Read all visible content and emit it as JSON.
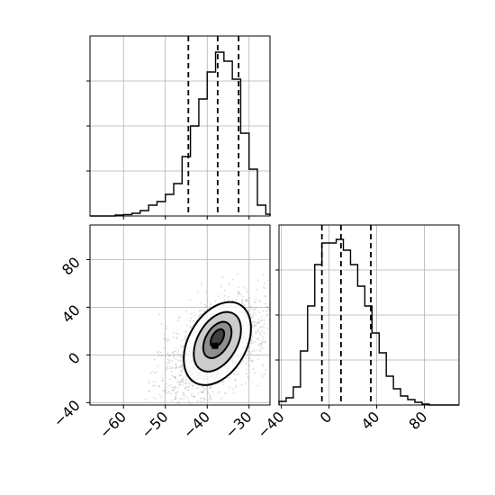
{
  "chart_data": [
    {
      "panel": "top-left",
      "type": "histogram",
      "variable": "x",
      "xlim": [
        -68,
        -25
      ],
      "ylim": [
        0,
        1
      ],
      "grid": true,
      "bin_edges": [
        -68,
        -66,
        -64,
        -62,
        -60,
        -58,
        -56,
        -54,
        -52,
        -50,
        -48,
        -46,
        -44,
        -42,
        -40,
        -38,
        -36,
        -34,
        -32,
        -30,
        -28,
        -26,
        -25
      ],
      "counts": [
        0,
        0,
        0,
        0.005,
        0.008,
        0.015,
        0.03,
        0.06,
        0.08,
        0.12,
        0.18,
        0.33,
        0.5,
        0.65,
        0.8,
        0.91,
        0.86,
        0.76,
        0.46,
        0.26,
        0.06,
        0.01
      ],
      "quantiles": [
        -44.5,
        -37.5,
        -32.5
      ],
      "yticks_unlabeled": true
    },
    {
      "panel": "bottom-left",
      "type": "scatter-density",
      "x_variable": "x",
      "y_variable": "y",
      "xlim": [
        -68,
        -25
      ],
      "ylim": [
        -42,
        109
      ],
      "xticks": [
        -60,
        -50,
        -40,
        -30
      ],
      "yticks": [
        -40,
        0,
        40,
        80
      ],
      "xtick_labels": [
        "−60",
        "−50",
        "−40",
        "−30"
      ],
      "ytick_labels": [
        "−40",
        "0",
        "40",
        "80"
      ],
      "grid": true,
      "center": [
        -38,
        5
      ],
      "contour_levels": 4
    },
    {
      "panel": "bottom-right",
      "type": "histogram",
      "variable": "y",
      "xlim": [
        -42,
        109
      ],
      "ylim": [
        0,
        1
      ],
      "xticks": [
        -40,
        0,
        40,
        80
      ],
      "xtick_labels": [
        "−40",
        "0",
        "40",
        "80"
      ],
      "grid": true,
      "bin_edges": [
        -42,
        -36,
        -30,
        -24,
        -18,
        -12,
        -6,
        0,
        6,
        12,
        18,
        24,
        30,
        36,
        42,
        48,
        54,
        60,
        66,
        72,
        78,
        84,
        90,
        96,
        109
      ],
      "counts": [
        0.02,
        0.04,
        0.1,
        0.3,
        0.55,
        0.78,
        0.9,
        0.9,
        0.92,
        0.86,
        0.78,
        0.66,
        0.55,
        0.4,
        0.29,
        0.16,
        0.09,
        0.05,
        0.03,
        0.015,
        0.005,
        0,
        0,
        0
      ],
      "quantiles": [
        -6,
        10,
        35
      ],
      "yticks_unlabeled": true
    }
  ]
}
